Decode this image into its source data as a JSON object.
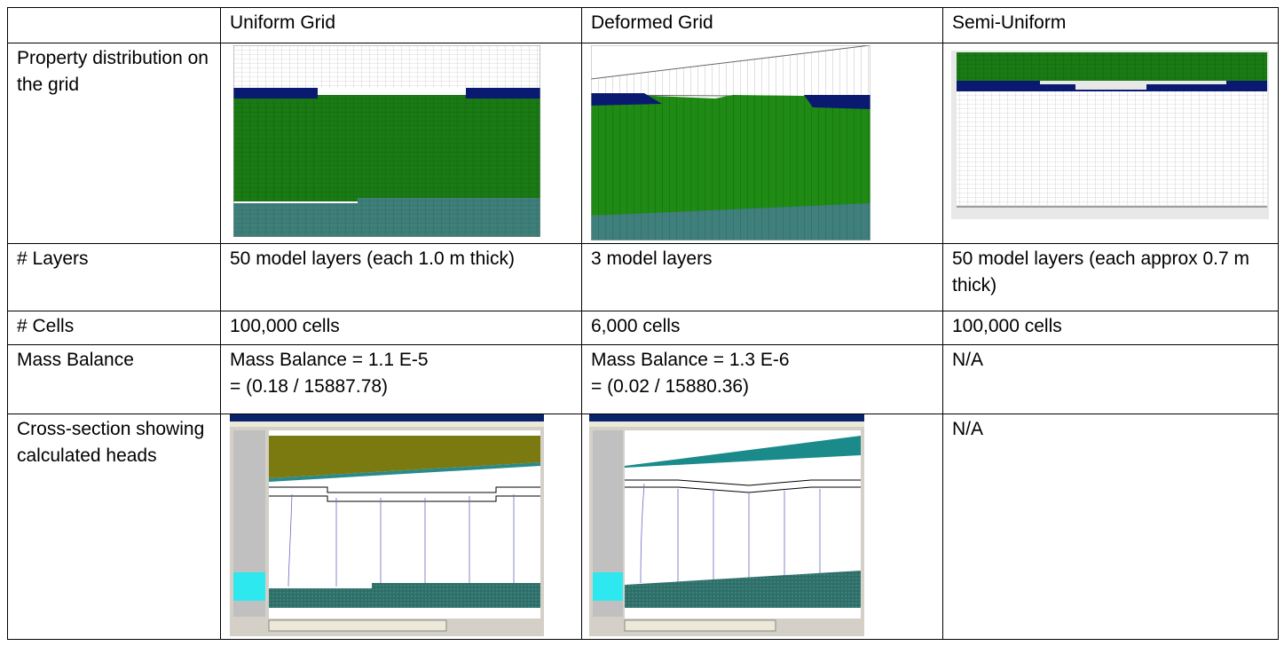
{
  "table": {
    "columns": [
      "Uniform Grid",
      "Deformed Grid",
      "Semi-Uniform"
    ],
    "rows": [
      {
        "label": "Property distribution on the grid"
      },
      {
        "label": "# Layers",
        "cells": [
          "50 model layers (each 1.0 m thick)",
          "3 model layers",
          "50 model layers (each approx 0.7 m thick)"
        ]
      },
      {
        "label": "# Cells",
        "cells": [
          "100,000 cells",
          "6,000 cells",
          "100,000 cells"
        ]
      },
      {
        "label": "Mass Balance",
        "cells": [
          [
            "Mass Balance = 1.1 E-5",
            "= (0.18 / 15887.78)"
          ],
          [
            "Mass Balance = 1.3 E-6",
            "= (0.02 / 15880.36)"
          ],
          [
            "N/A"
          ]
        ]
      },
      {
        "label": "Cross-section showing calculated heads",
        "semi_uniform": "N/A"
      }
    ]
  }
}
